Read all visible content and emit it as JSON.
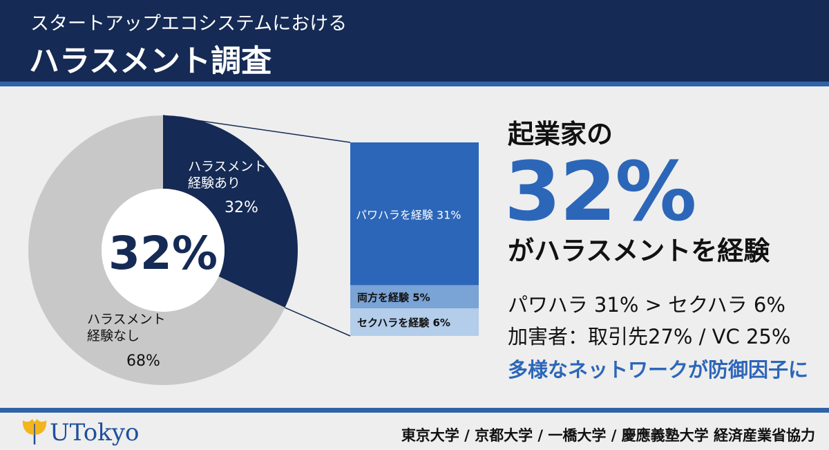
{
  "header": {
    "subtitle": "スタートアップエコシステムにおける",
    "title": "ハラスメント調査"
  },
  "chart_data": [
    {
      "type": "pie",
      "style": "donut",
      "center_label": "32%",
      "slices": [
        {
          "label_line1": "ハラスメント",
          "label_line2": "経験あり",
          "value": 32,
          "value_label": "32%",
          "color": "#152a54"
        },
        {
          "label_line1": "ハラスメント",
          "label_line2": "経験なし",
          "value": 68,
          "value_label": "68%",
          "color": "#c8c8c8"
        }
      ]
    },
    {
      "type": "bar",
      "style": "stacked-column breakdown of the 32% slice",
      "segments": [
        {
          "label": "パワハラを経験 31%",
          "value": 31,
          "color": "#2c66b8"
        },
        {
          "label": "両方を経験 5%",
          "value": 5,
          "color": "#7aa3d6"
        },
        {
          "label": "セクハラを経験 6%",
          "value": 6,
          "color": "#b3cdea"
        }
      ]
    }
  ],
  "summary": {
    "lead": "起業家の",
    "big": "32%",
    "tail": "がハラスメントを経験",
    "fact1": "パワハラ 31% > セクハラ 6%",
    "fact2": "加害者：取引先27% / VC 25%",
    "fact3": "多様なネットワークが防御因子に"
  },
  "footer": {
    "logo_text": "UTokyo",
    "credits": "東京大学 / 京都大学 / 一橋大学 / 慶應義塾大学  経済産業省協力"
  },
  "colors": {
    "navy": "#152a54",
    "accent_blue": "#2c66b8",
    "rule_blue": "#2f63a8",
    "logo_gold": "#f2b51c"
  }
}
